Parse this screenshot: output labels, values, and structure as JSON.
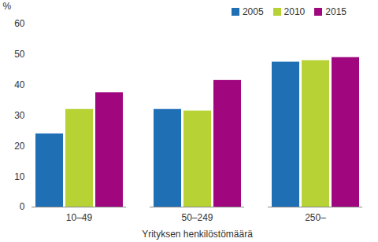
{
  "chart_data": {
    "type": "bar",
    "categories": [
      "10–49",
      "50–249",
      "250–"
    ],
    "series": [
      {
        "name": "2005",
        "color": "#1f6fb5",
        "values": [
          24,
          32,
          47.5
        ]
      },
      {
        "name": "2010",
        "color": "#b6d234",
        "values": [
          32,
          31.5,
          48
        ]
      },
      {
        "name": "2015",
        "color": "#a0077e",
        "values": [
          37.5,
          41.5,
          49
        ]
      }
    ],
    "x_label": "Yrityksen henkilöstömäärä",
    "y_label": "%",
    "ylim": [
      0,
      60
    ],
    "yticks": [
      0,
      10,
      20,
      30,
      40,
      50,
      60
    ],
    "grid": false,
    "legend": "top-right"
  }
}
